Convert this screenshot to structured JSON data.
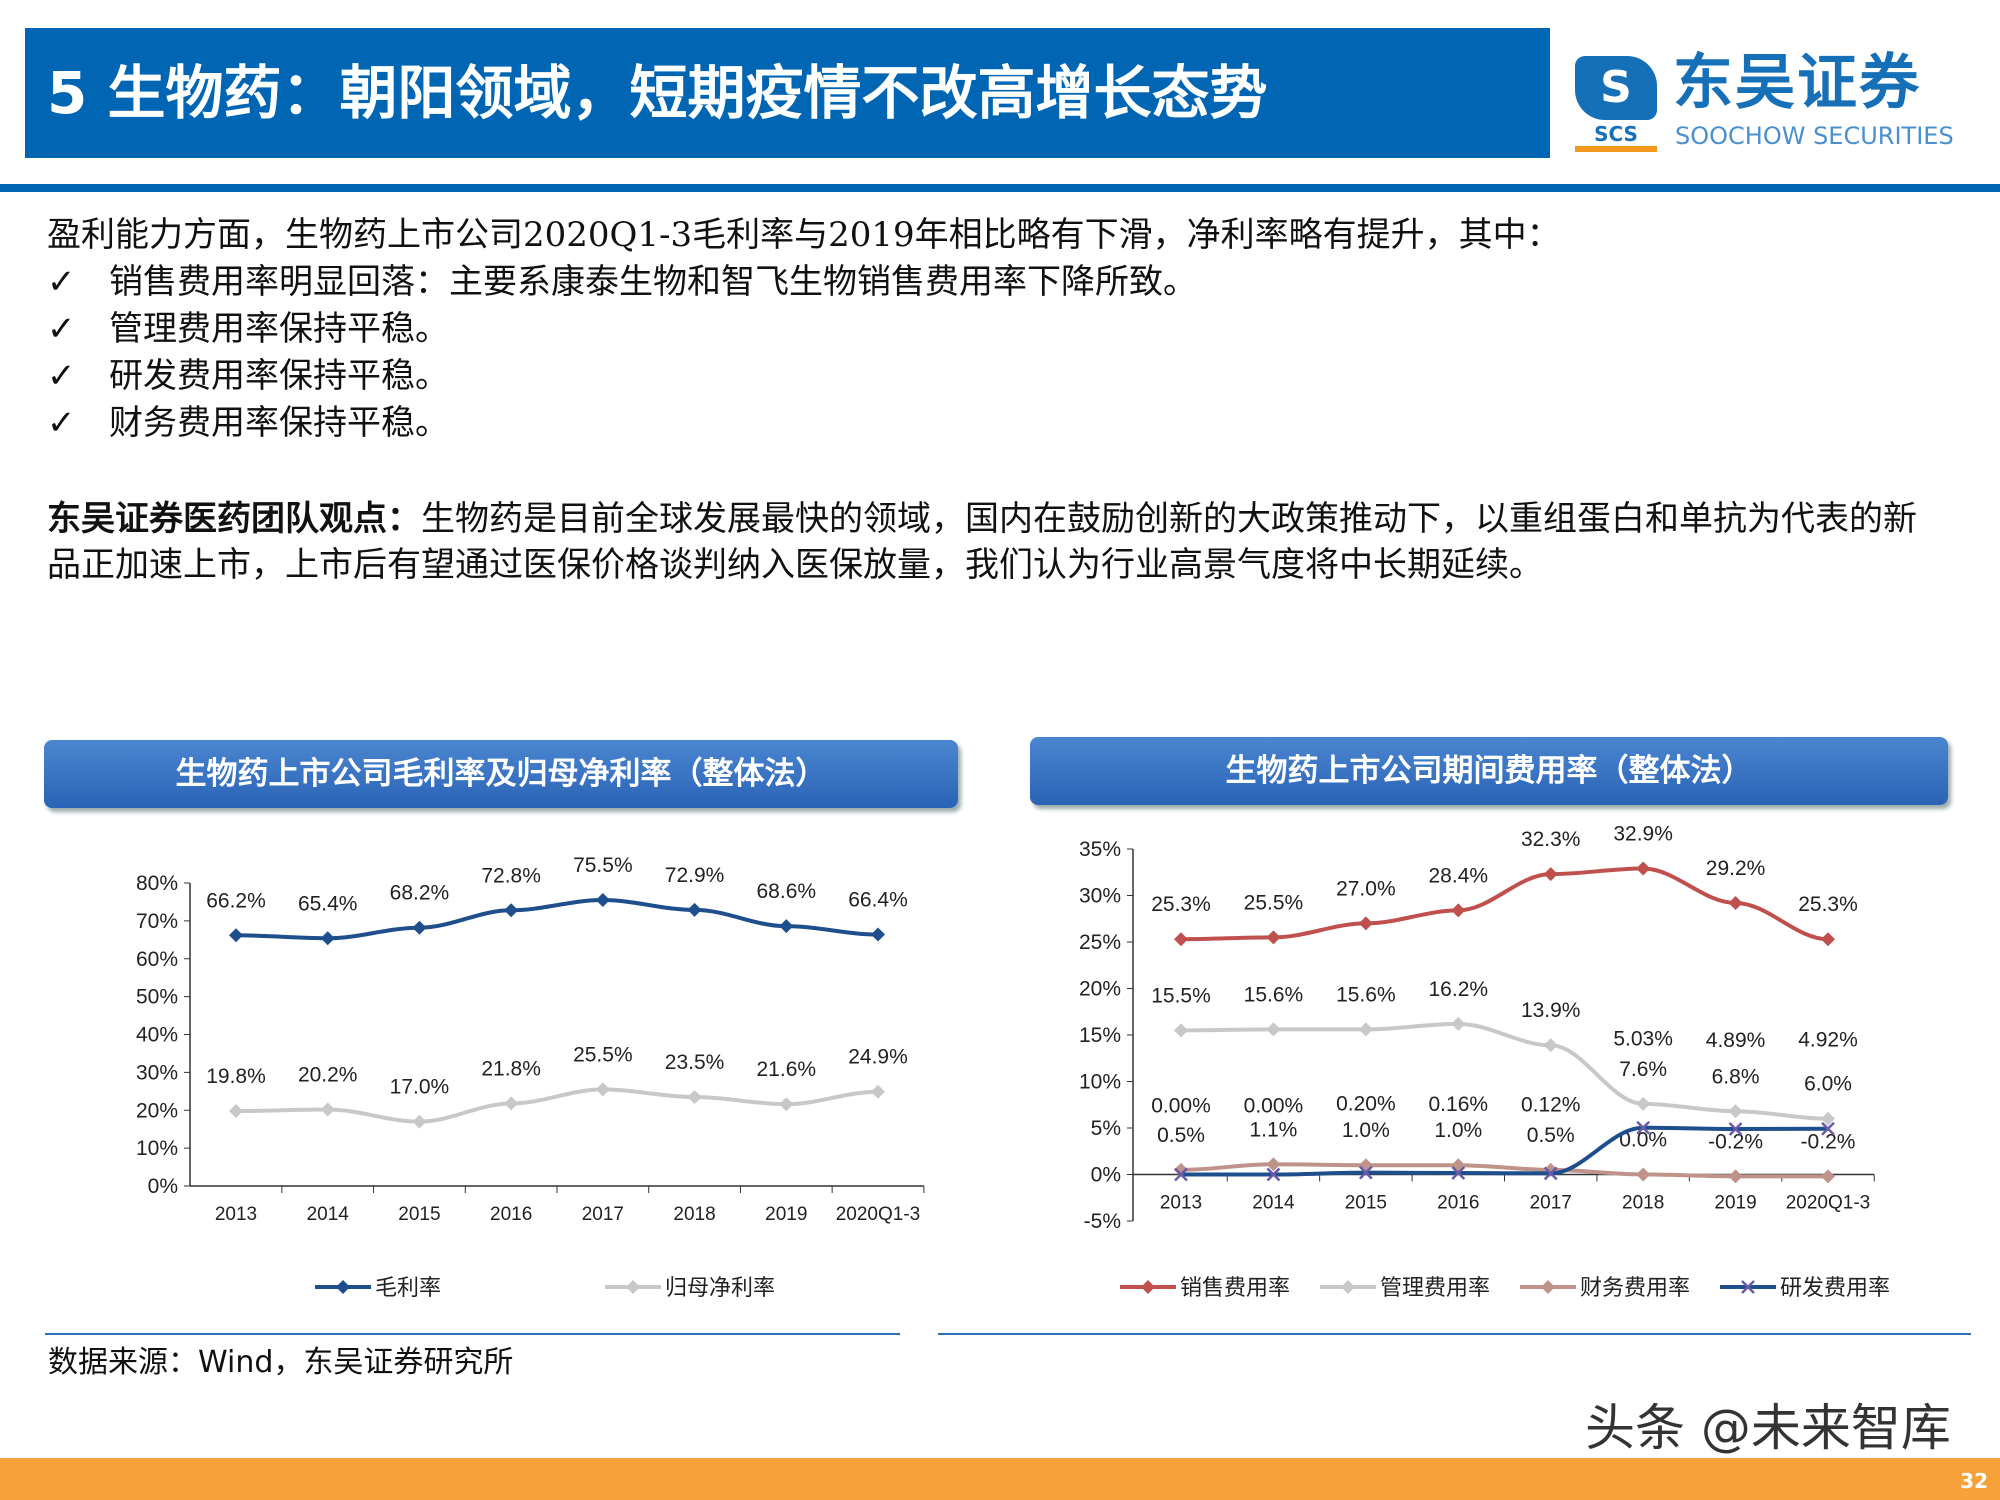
{
  "header": {
    "title": "5 生物药：朝阳领域，短期疫情不改高增长态势"
  },
  "logo": {
    "cn": "东吴证券",
    "en": "SOOCHOW SECURITIES",
    "abbr": "SCS"
  },
  "body": {
    "intro": "盈利能力方面，生物药上市公司2020Q1-3毛利率与2019年相比略有下滑，净利率略有提升，其中：",
    "bullets": [
      "销售费用率明显回落：主要系康泰生物和智飞生物销售费用率下降所致。",
      "管理费用率保持平稳。",
      "研发费用率保持平稳。",
      "财务费用率保持平稳。"
    ],
    "check": "✓",
    "view_label": "东吴证券医药团队观点：",
    "view_text": "生物药是目前全球发展最快的领域，国内在鼓励创新的大政策推动下，以重组蛋白和单抗为代表的新品正加速上市，上市后有望通过医保价格谈判纳入医保放量，我们认为行业高景气度将中长期延续。"
  },
  "chart_data": [
    {
      "type": "line",
      "title": "生物药上市公司毛利率及归母净利率（整体法）",
      "categories": [
        "2013",
        "2014",
        "2015",
        "2016",
        "2017",
        "2018",
        "2019",
        "2020Q1-3"
      ],
      "ylim": [
        0,
        80
      ],
      "yticks": [
        "0%",
        "10%",
        "20%",
        "30%",
        "40%",
        "50%",
        "60%",
        "70%",
        "80%"
      ],
      "legend": "bottom",
      "series": [
        {
          "name": "毛利率",
          "color": "#1f4e8c",
          "marker": "diamond",
          "values": [
            66.2,
            65.4,
            68.2,
            72.8,
            75.5,
            72.9,
            68.6,
            66.4
          ],
          "labels": [
            "66.2%",
            "65.4%",
            "68.2%",
            "72.8%",
            "75.5%",
            "72.9%",
            "68.6%",
            "66.4%"
          ]
        },
        {
          "name": "归母净利率",
          "color": "#c8c8c8",
          "marker": "diamond",
          "values": [
            19.8,
            20.2,
            17.0,
            21.8,
            25.5,
            23.5,
            21.6,
            24.9
          ],
          "labels": [
            "19.8%",
            "20.2%",
            "17.0%",
            "21.8%",
            "25.5%",
            "23.5%",
            "21.6%",
            "24.9%"
          ]
        }
      ]
    },
    {
      "type": "line",
      "title": "生物药上市公司期间费用率（整体法）",
      "categories": [
        "2013",
        "2014",
        "2015",
        "2016",
        "2017",
        "2018",
        "2019",
        "2020Q1-3"
      ],
      "ylim": [
        -5,
        35
      ],
      "yticks": [
        "-5%",
        "0%",
        "5%",
        "10%",
        "15%",
        "20%",
        "25%",
        "30%",
        "35%"
      ],
      "legend": "bottom",
      "series": [
        {
          "name": "销售费用率",
          "color": "#c0504d",
          "marker": "diamond",
          "values": [
            25.3,
            25.5,
            27.0,
            28.4,
            32.3,
            32.9,
            29.2,
            25.3
          ],
          "labels": [
            "25.3%",
            "25.5%",
            "27.0%",
            "28.4%",
            "32.3%",
            "32.9%",
            "29.2%",
            "25.3%"
          ]
        },
        {
          "name": "管理费用率",
          "color": "#c8c8c8",
          "marker": "diamond",
          "values": [
            15.5,
            15.6,
            15.6,
            16.2,
            13.9,
            7.6,
            6.8,
            6.0
          ],
          "labels": [
            "15.5%",
            "15.6%",
            "15.6%",
            "16.2%",
            "13.9%",
            "7.6%",
            "6.8%",
            "6.0%"
          ]
        },
        {
          "name": "财务费用率",
          "color": "#c0938a",
          "marker": "diamond",
          "values": [
            0.5,
            1.1,
            1.0,
            1.0,
            0.5,
            0.0,
            -0.2,
            -0.2
          ],
          "labels": [
            "0.5%",
            "1.1%",
            "1.0%",
            "1.0%",
            "0.5%",
            "0.0%",
            "-0.2%",
            "-0.2%"
          ]
        },
        {
          "name": "研发费用率",
          "color": "#1f4e8c",
          "marker": "x",
          "values": [
            0.0,
            0.0,
            0.2,
            0.16,
            0.12,
            5.03,
            4.89,
            4.92
          ],
          "labels": [
            "0.00%",
            "0.00%",
            "0.20%",
            "0.16%",
            "0.12%",
            "5.03%",
            "4.89%",
            "4.92%"
          ]
        }
      ]
    }
  ],
  "source": "数据来源：Wind，东吴证券研究所",
  "watermark": "头条 @未来智库",
  "page_number": "32"
}
